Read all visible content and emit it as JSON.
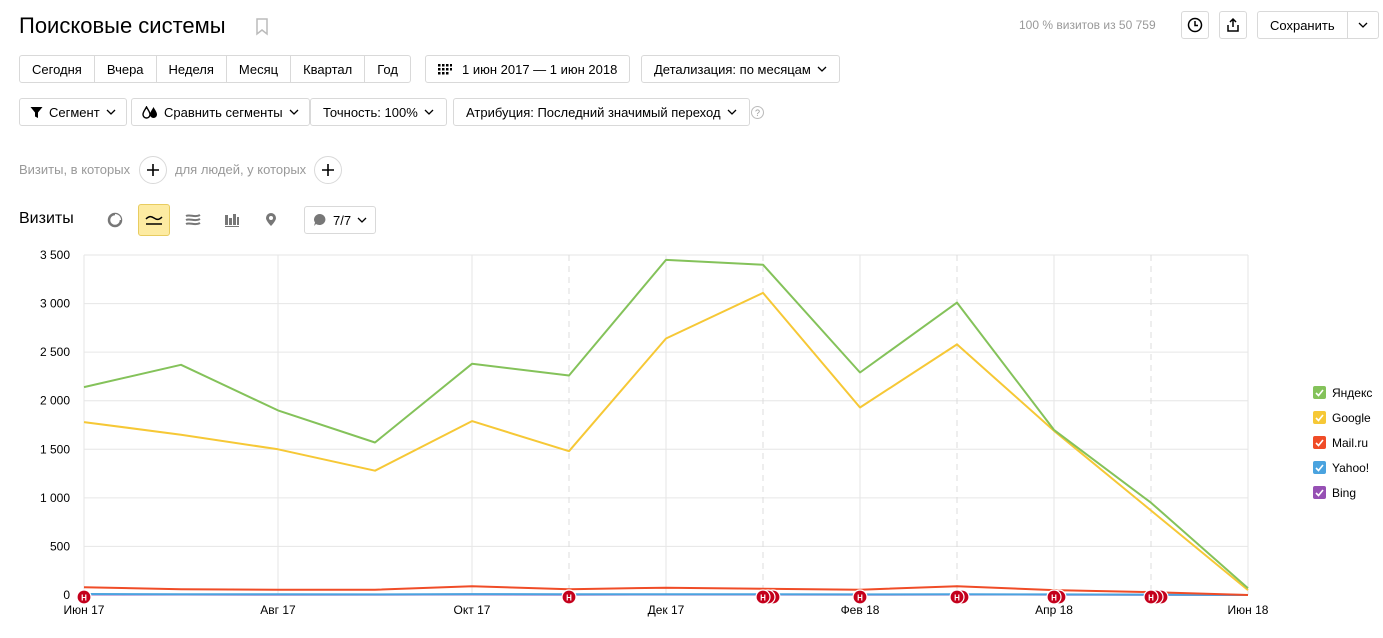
{
  "header": {
    "title": "Поисковые системы",
    "visits_info": "100 % визитов из 50 759",
    "save_label": "Сохранить"
  },
  "period_tabs": [
    "Сегодня",
    "Вчера",
    "Неделя",
    "Месяц",
    "Квартал",
    "Год"
  ],
  "date_range": "1 июн 2017 — 1 июн 2018",
  "detail_label": "Детализация: по месяцам",
  "filters": {
    "segment": "Сегмент",
    "compare": "Сравнить сегменты",
    "accuracy": "Точность: 100%",
    "attribution": "Атрибуция: Последний значимый переход",
    "help": "?"
  },
  "conditions": {
    "visits_where": "Визиты, в которых",
    "people_where": "для людей, у которых"
  },
  "chart_header": {
    "label": "Визиты",
    "notes_count": "7/7"
  },
  "annotation_glyph": "Н",
  "chart_data": {
    "type": "line",
    "x": [
      "2017-06",
      "2017-07",
      "2017-08",
      "2017-09",
      "2017-10",
      "2017-11",
      "2017-12",
      "2018-01",
      "2018-02",
      "2018-03",
      "2018-04",
      "2018-05",
      "2018-06"
    ],
    "x_tick_labels": [
      "Июн 17",
      "Авг 17",
      "Окт 17",
      "Дек 17",
      "Фев 18",
      "Апр 18",
      "Июн 18"
    ],
    "y_tick_labels": [
      "0",
      "500",
      "1 000",
      "1 500",
      "2 000",
      "2 500",
      "3 000",
      "3 500"
    ],
    "ylim": [
      0,
      3500
    ],
    "grid": true,
    "legend_position": "right",
    "series": [
      {
        "name": "Яндекс",
        "color": "#84c25a",
        "values": [
          2140,
          2370,
          1900,
          1570,
          2380,
          2260,
          3450,
          3400,
          2290,
          3010,
          1700,
          950,
          70
        ]
      },
      {
        "name": "Google",
        "color": "#f6c836",
        "values": [
          1780,
          1650,
          1500,
          1280,
          1790,
          1480,
          2640,
          3110,
          1930,
          2580,
          1690,
          870,
          50
        ]
      },
      {
        "name": "Mail.ru",
        "color": "#f04c27",
        "values": [
          80,
          60,
          55,
          55,
          90,
          60,
          75,
          65,
          55,
          90,
          50,
          30,
          0
        ]
      },
      {
        "name": "Yahoo!",
        "color": "#4aa3df",
        "values": [
          10,
          8,
          7,
          6,
          9,
          7,
          8,
          8,
          6,
          8,
          6,
          4,
          0
        ]
      },
      {
        "name": "Bing",
        "color": "#9650b4",
        "values": [
          6,
          5,
          4,
          4,
          6,
          4,
          5,
          5,
          4,
          5,
          4,
          2,
          0
        ]
      }
    ],
    "annotations": [
      {
        "x": "2017-06",
        "count": 1
      },
      {
        "x": "2017-11",
        "count": 1
      },
      {
        "x": "2018-01",
        "count": 3
      },
      {
        "x": "2018-02",
        "count": 1
      },
      {
        "x": "2018-03",
        "count": 2
      },
      {
        "x": "2018-04",
        "count": 2
      },
      {
        "x": "2018-05",
        "count": 3
      }
    ]
  }
}
